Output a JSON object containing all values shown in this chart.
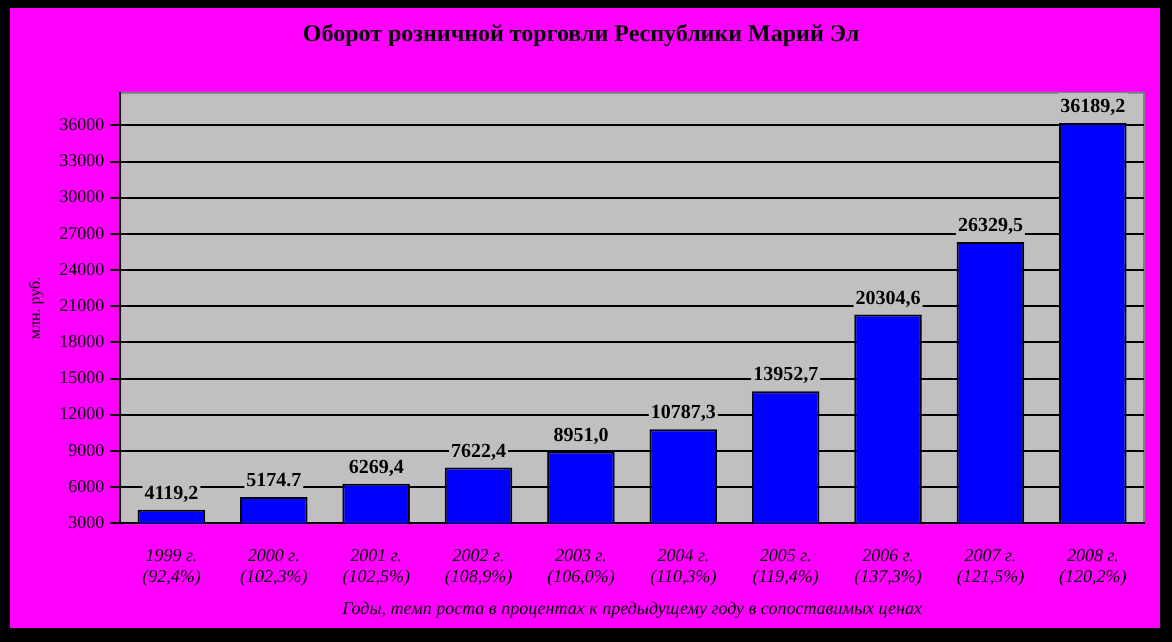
{
  "chart_data": {
    "type": "bar",
    "title": "Оборот розничной торговли Республики Марий Эл",
    "xlabel": "Годы, темп роста в процентах к предыдущему году в сопоставимых ценах",
    "ylabel": "млн. руб.",
    "categories": [
      "1999 г.\n(92,4%)",
      "2000 г.\n(102,3%)",
      "2001 г.\n(102,5%)",
      "2002 г.\n(108,9%)",
      "2003 г.\n(106,0%)",
      "2004 г.\n(110,3%)",
      "2005 г.\n(119,4%)",
      "2006 г.\n(137,3%)",
      "2007 г.\n(121,5%)",
      "2008 г.\n(120,2%)"
    ],
    "values": [
      4119.2,
      5174.7,
      6269.4,
      7622.4,
      8951.0,
      10787.3,
      13952.7,
      20304.6,
      26329.5,
      36189.2
    ],
    "value_labels": [
      "4119,2",
      "5174.7",
      "6269,4",
      "7622,4",
      "8951,0",
      "10787,3",
      "13952,7",
      "20304,6",
      "26329,5",
      "36189,2"
    ],
    "color": "#0000ff",
    "ylim": [
      3000,
      38700
    ],
    "yticks": [
      3000,
      6000,
      9000,
      12000,
      15000,
      18000,
      21000,
      24000,
      27000,
      30000,
      33000,
      36000
    ],
    "grid": "y",
    "legend": false
  }
}
